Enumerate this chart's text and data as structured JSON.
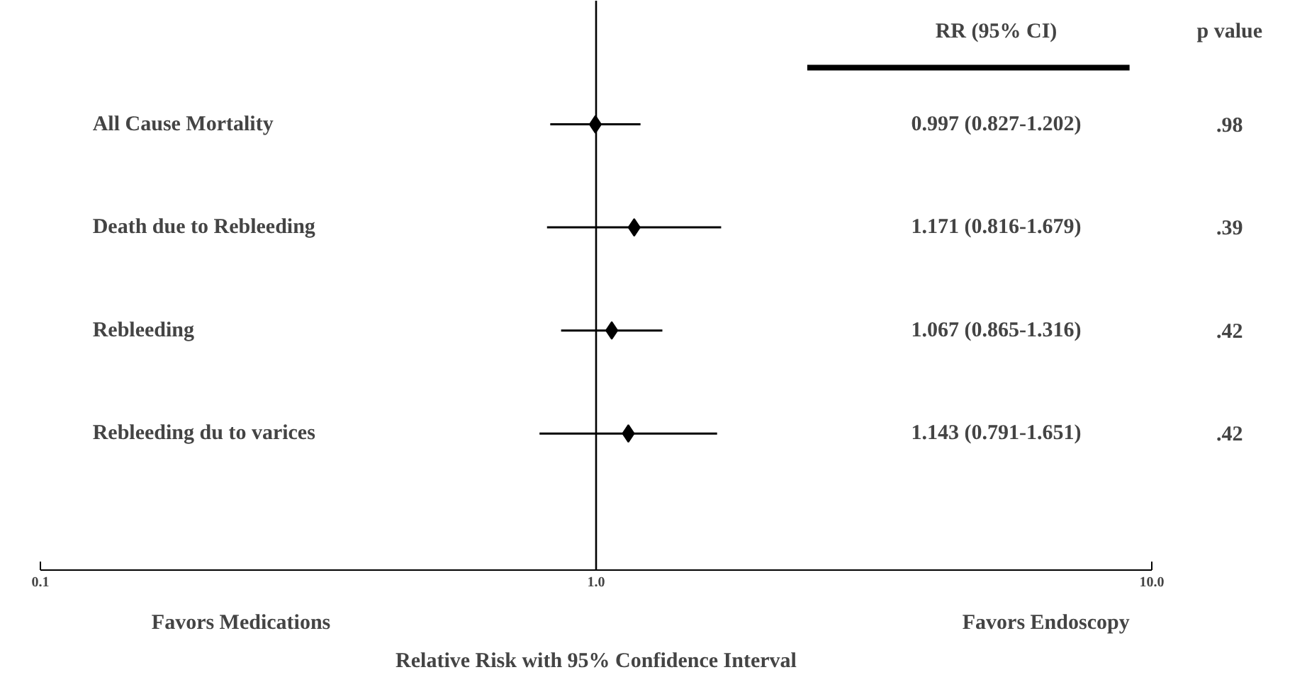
{
  "chart_data": {
    "type": "scatter",
    "orientation": "horizontal",
    "log": "x",
    "xlabel": "Relative Risk with 95% Confidence Interval",
    "categories": [
      "All Cause Mortality",
      "Death due to Rebleeding",
      "Rebleeding",
      "Rebleeding du to varices"
    ],
    "values": [
      0.997,
      1.171,
      1.067,
      1.143
    ],
    "errors": [
      [
        0.827,
        1.202
      ],
      [
        0.816,
        1.679
      ],
      [
        0.865,
        1.316
      ],
      [
        0.791,
        1.651
      ]
    ],
    "color": "#000000",
    "marker": "diamond",
    "grid": false,
    "xlim": [
      0.1,
      10
    ],
    "xticks": [
      0.1,
      {
        "value": 1,
        "label": "1.0"
      },
      {
        "value": 10,
        "label": "10.0"
      }
    ],
    "ref_lines": [
      {
        "axis": "x",
        "value": 1
      }
    ],
    "annotations": [
      "RR (95% CI)",
      "p value",
      "Favors Medications",
      "Favors Endoscopy",
      "0.997 (0.827-1.202)",
      "1.171 (0.816-1.679)",
      "1.067 (0.865-1.316)",
      "1.143 (0.791-1.651)",
      ".98",
      ".39",
      ".42",
      ".42"
    ]
  }
}
